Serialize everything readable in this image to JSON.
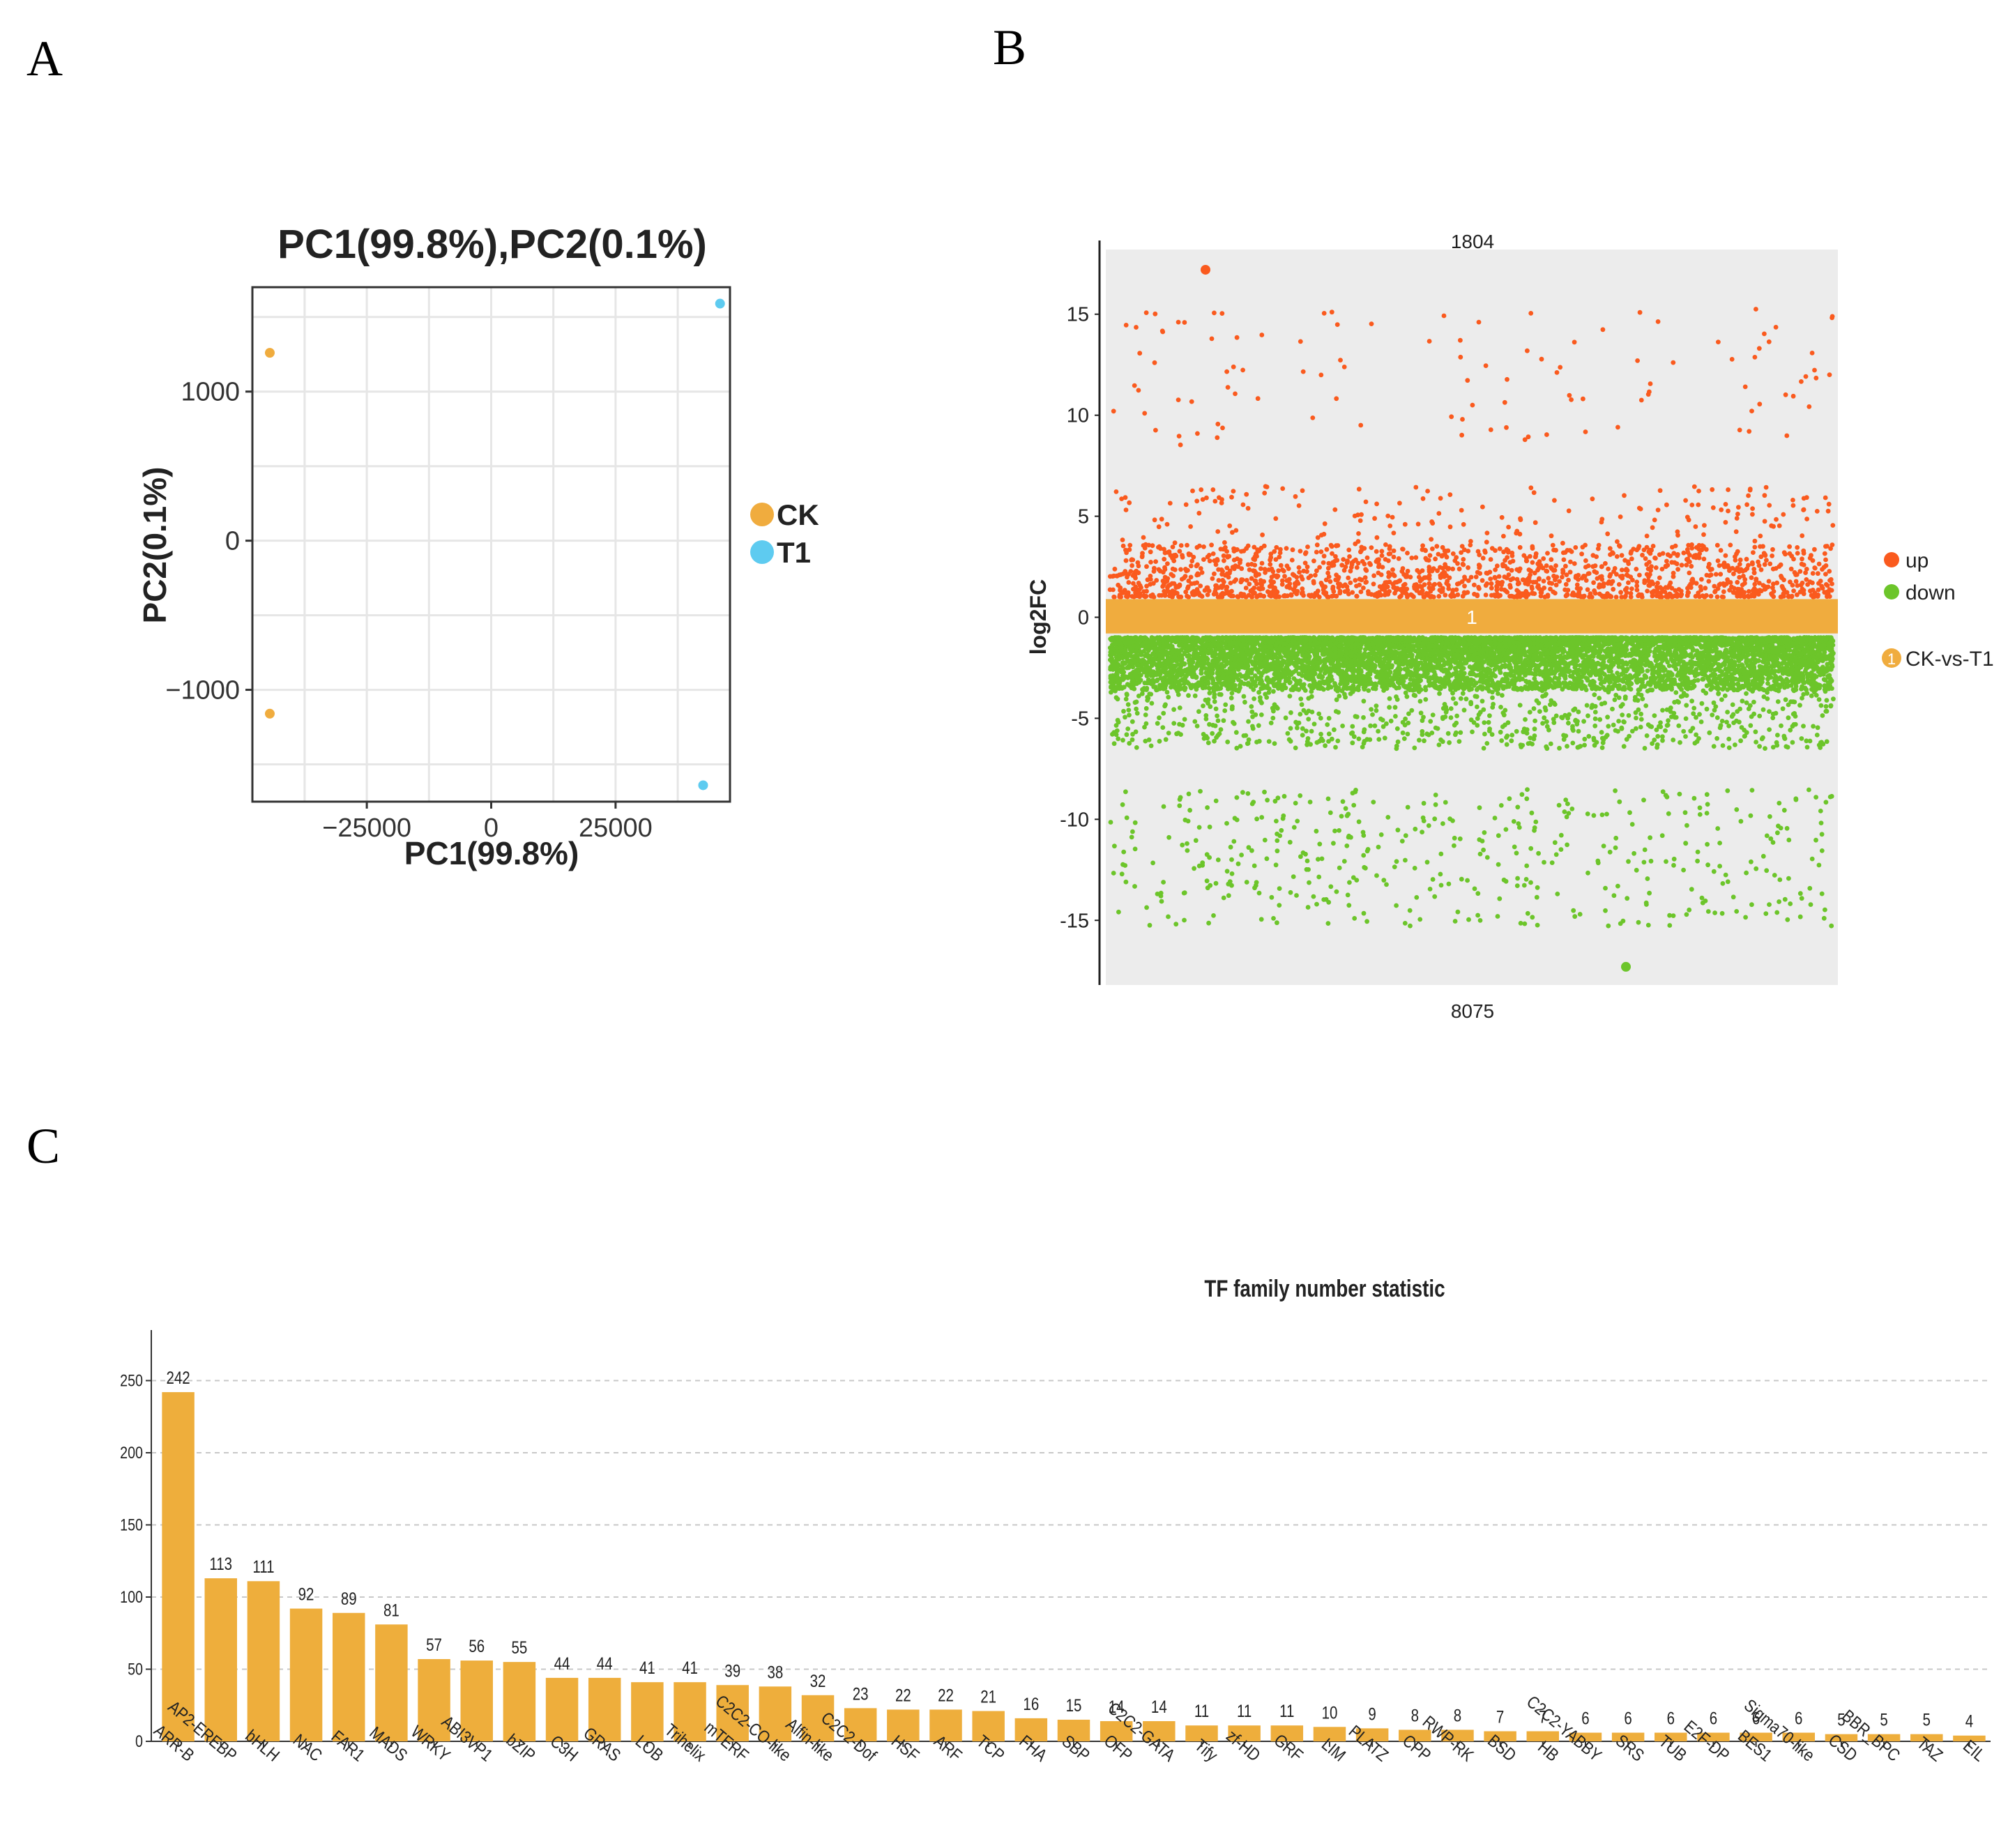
{
  "panels": {
    "A": "A",
    "B": "B",
    "C": "C"
  },
  "colors": {
    "CK": "#f0ac3e",
    "T1": "#5ecbf0",
    "up": "#fa5a1e",
    "down": "#6cc52a",
    "band": "#f0ac3e",
    "bar": "#eeae3c",
    "panel_bg": "#ececec"
  },
  "chart_data": [
    {
      "panel": "A",
      "type": "scatter",
      "title": "PC1(99.8%),PC2(0.1%)",
      "xlabel": "PC1(99.8%)",
      "ylabel": "PC2(0.1%)",
      "xlim": [
        -48000,
        48000
      ],
      "ylim": [
        -1750,
        1700
      ],
      "xticks": [
        -25000,
        0,
        25000
      ],
      "xtick_labels": [
        "−25000",
        "0",
        "25000"
      ],
      "yticks": [
        -1000,
        0,
        1000
      ],
      "ytick_labels": [
        "−1000",
        "0",
        "1000"
      ],
      "grid": true,
      "legend_position": "right",
      "series": [
        {
          "name": "CK",
          "points": [
            [
              -44500,
              1260
            ],
            [
              -44500,
              -1160
            ]
          ]
        },
        {
          "name": "T1",
          "points": [
            [
              46000,
              1590
            ],
            [
              42600,
              -1640
            ]
          ]
        }
      ]
    },
    {
      "panel": "B",
      "type": "scatter",
      "ylabel": "log2FC",
      "ylim": [
        -18.2,
        18.2
      ],
      "yticks": [
        15,
        10,
        5,
        0,
        -5,
        -10,
        -15
      ],
      "ytick_labels": [
        "15",
        "10",
        "5",
        "0",
        "-5",
        "-10",
        "-15"
      ],
      "top_count": "1804",
      "bottom_count": "8075",
      "group_band_label": "1",
      "group_band_range": [
        -0.8,
        0.9
      ],
      "legend_position": "right",
      "legend_group_label": "CK-vs-T1",
      "legend_group_marker": "1",
      "series": [
        {
          "name": "up",
          "count": 1804,
          "y_range": [
            1,
            17.2
          ],
          "highlighted_max": 17.2
        },
        {
          "name": "down",
          "count": 8075,
          "y_range": [
            -17.3,
            -1
          ],
          "highlighted_min": -17.3
        }
      ]
    },
    {
      "panel": "C",
      "type": "bar",
      "title": "TF family number statistic",
      "ylim": [
        0,
        280
      ],
      "yticks": [
        0,
        50,
        100,
        150,
        200,
        250
      ],
      "grid": true,
      "categories": [
        "ARR-B",
        "AP2-EREBP",
        "bHLH",
        "NAC",
        "FAR1",
        "MADS",
        "WRKY",
        "ABI3VP1",
        "bZIP",
        "C3H",
        "GRAS",
        "LOB",
        "Trihelix",
        "mTERF",
        "C2C2-CO-like",
        "Alfin-like",
        "C2C2-Dof",
        "HSF",
        "ARF",
        "TCP",
        "FHA",
        "SBP",
        "OFP",
        "C2C2-GATA",
        "Tify",
        "zf-HD",
        "GRF",
        "LIM",
        "PLATZ",
        "CPP",
        "RWP-RK",
        "BSD",
        "HB",
        "C2C2-YABBY",
        "SRS",
        "TUB",
        "E2F-DP",
        "BES1",
        "Sigma70-like",
        "CSD",
        "BBR_BPC",
        "TAZ",
        "EIL"
      ],
      "values": [
        242,
        113,
        111,
        92,
        89,
        81,
        57,
        56,
        55,
        44,
        44,
        41,
        41,
        39,
        38,
        32,
        23,
        22,
        22,
        21,
        16,
        15,
        14,
        14,
        11,
        11,
        11,
        10,
        9,
        8,
        8,
        7,
        7,
        6,
        6,
        6,
        6,
        6,
        6,
        5,
        5,
        5,
        4
      ]
    }
  ]
}
